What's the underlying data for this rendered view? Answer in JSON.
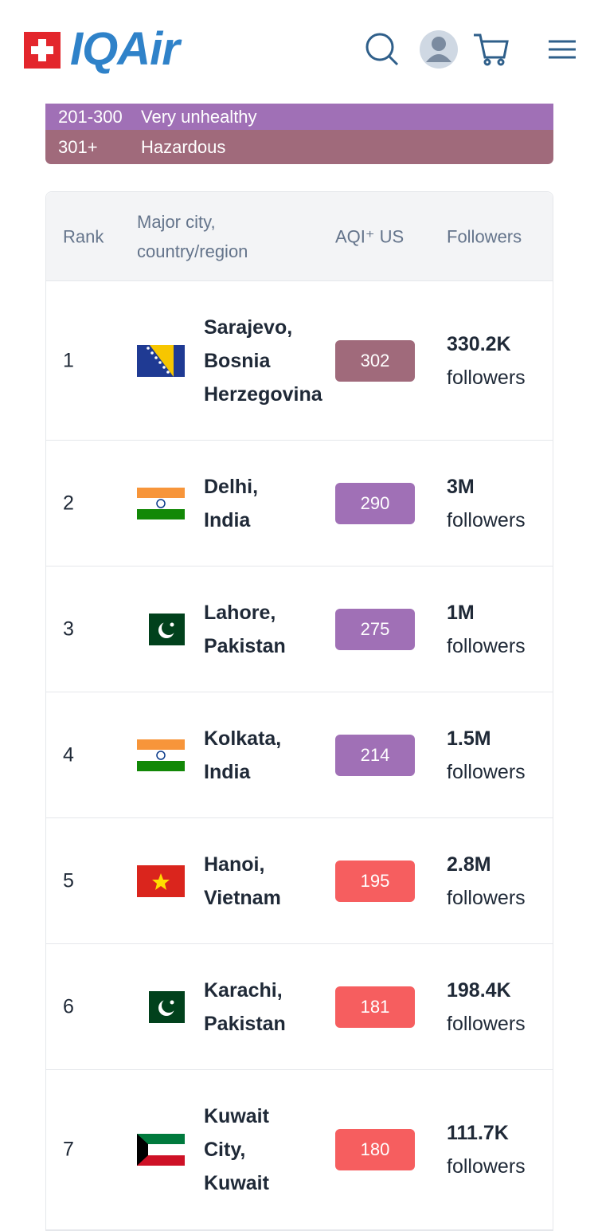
{
  "header": {
    "logo": "IQAir"
  },
  "legend": [
    {
      "range": "201-300",
      "label": "Very unhealthy",
      "color": "#a070b6"
    },
    {
      "range": "301+",
      "label": "Hazardous",
      "color": "#a06a7b"
    }
  ],
  "table": {
    "columns": [
      "Rank",
      [
        "Major city,",
        "country/region"
      ],
      "AQI⁺ US",
      "Followers"
    ],
    "rows": [
      {
        "rank": "1",
        "city": [
          "Sarajevo,",
          "Bosnia",
          "Herzegovina"
        ],
        "aqi": "302",
        "color": "#a06a7b",
        "followers": "330.2K",
        "unit": "followers"
      },
      {
        "rank": "2",
        "city": [
          "Delhi,",
          "India"
        ],
        "aqi": "290",
        "color": "#a070b6",
        "followers": "3M",
        "unit": "followers"
      },
      {
        "rank": "3",
        "city": [
          "Lahore,",
          "Pakistan"
        ],
        "aqi": "275",
        "color": "#a070b6",
        "followers": "1M",
        "unit": "followers"
      },
      {
        "rank": "4",
        "city": [
          "Kolkata,",
          "India"
        ],
        "aqi": "214",
        "color": "#a070b6",
        "followers": "1.5M",
        "unit": "followers"
      },
      {
        "rank": "5",
        "city": [
          "Hanoi,",
          "Vietnam"
        ],
        "aqi": "195",
        "color": "#f65e5f",
        "followers": "2.8M",
        "unit": "followers"
      },
      {
        "rank": "6",
        "city": [
          "Karachi,",
          "Pakistan"
        ],
        "aqi": "181",
        "color": "#f65e5f",
        "followers": "198.4K",
        "unit": "followers"
      },
      {
        "rank": "7",
        "city": [
          "Kuwait",
          "City,",
          "Kuwait"
        ],
        "aqi": "180",
        "color": "#f65e5f",
        "followers": "111.7K",
        "unit": "followers"
      }
    ]
  }
}
